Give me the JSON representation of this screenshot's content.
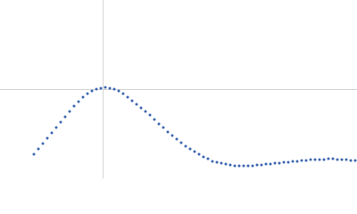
{
  "chart_data": {
    "type": "scatter",
    "color": "#3d67b1",
    "xlim": [
      0,
      4
    ],
    "ylim": [
      0,
      2
    ],
    "xticks": [
      1.15
    ],
    "yticks": [
      1
    ],
    "grid": true,
    "x": [
      0.38,
      0.43,
      0.48,
      0.53,
      0.58,
      0.63,
      0.68,
      0.73,
      0.78,
      0.83,
      0.88,
      0.93,
      0.98,
      1.03,
      1.08,
      1.13,
      1.18,
      1.23,
      1.28,
      1.33,
      1.38,
      1.43,
      1.48,
      1.53,
      1.58,
      1.63,
      1.68,
      1.73,
      1.78,
      1.83,
      1.88,
      1.93,
      1.98,
      2.03,
      2.08,
      2.13,
      2.18,
      2.23,
      2.28,
      2.33,
      2.38,
      2.43,
      2.48,
      2.53,
      2.58,
      2.63,
      2.68,
      2.73,
      2.78,
      2.83,
      2.88,
      2.93,
      2.98,
      3.03,
      3.08,
      3.13,
      3.18,
      3.23,
      3.28,
      3.33,
      3.38,
      3.43,
      3.48,
      3.53,
      3.58,
      3.63,
      3.68,
      3.73,
      3.78,
      3.83,
      3.88,
      3.93,
      3.98
    ],
    "values": [
      0.27,
      0.33,
      0.39,
      0.45,
      0.51,
      0.57,
      0.63,
      0.69,
      0.75,
      0.81,
      0.86,
      0.91,
      0.95,
      0.98,
      1.0,
      1.01,
      1.02,
      1.01,
      1.0,
      0.98,
      0.95,
      0.91,
      0.87,
      0.83,
      0.79,
      0.75,
      0.71,
      0.66,
      0.61,
      0.57,
      0.52,
      0.48,
      0.44,
      0.4,
      0.36,
      0.33,
      0.3,
      0.27,
      0.24,
      0.22,
      0.19,
      0.18,
      0.17,
      0.16,
      0.15,
      0.14,
      0.14,
      0.14,
      0.14,
      0.14,
      0.15,
      0.15,
      0.16,
      0.16,
      0.17,
      0.17,
      0.18,
      0.18,
      0.19,
      0.19,
      0.2,
      0.2,
      0.21,
      0.21,
      0.21,
      0.21,
      0.22,
      0.22,
      0.21,
      0.21,
      0.21,
      0.2,
      0.2
    ]
  }
}
